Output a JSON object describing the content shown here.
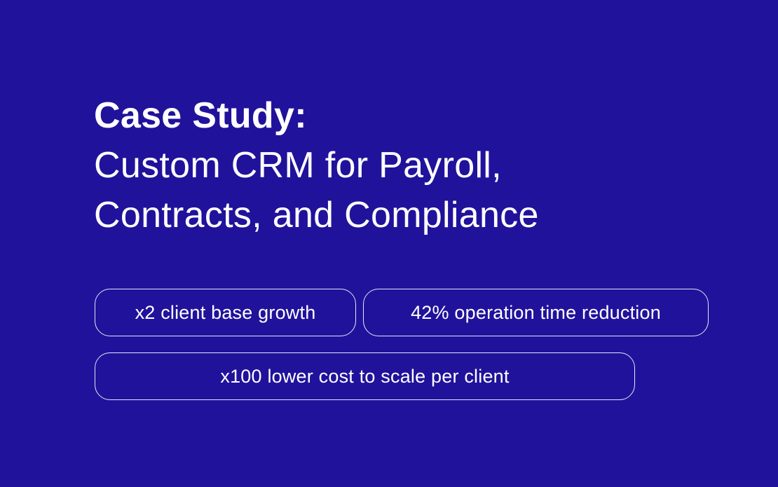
{
  "theme": {
    "background": "#21129b",
    "text": "#ffffff",
    "pill_border": "#e6e4f5"
  },
  "title": {
    "heading": "Case Study:",
    "lines": [
      "Custom CRM for Payroll,",
      "Contracts, and Compliance"
    ]
  },
  "metrics": [
    {
      "label": "x2 client base growth"
    },
    {
      "label": "42% operation time reduction"
    },
    {
      "label": "x100 lower cost to scale per client"
    }
  ]
}
